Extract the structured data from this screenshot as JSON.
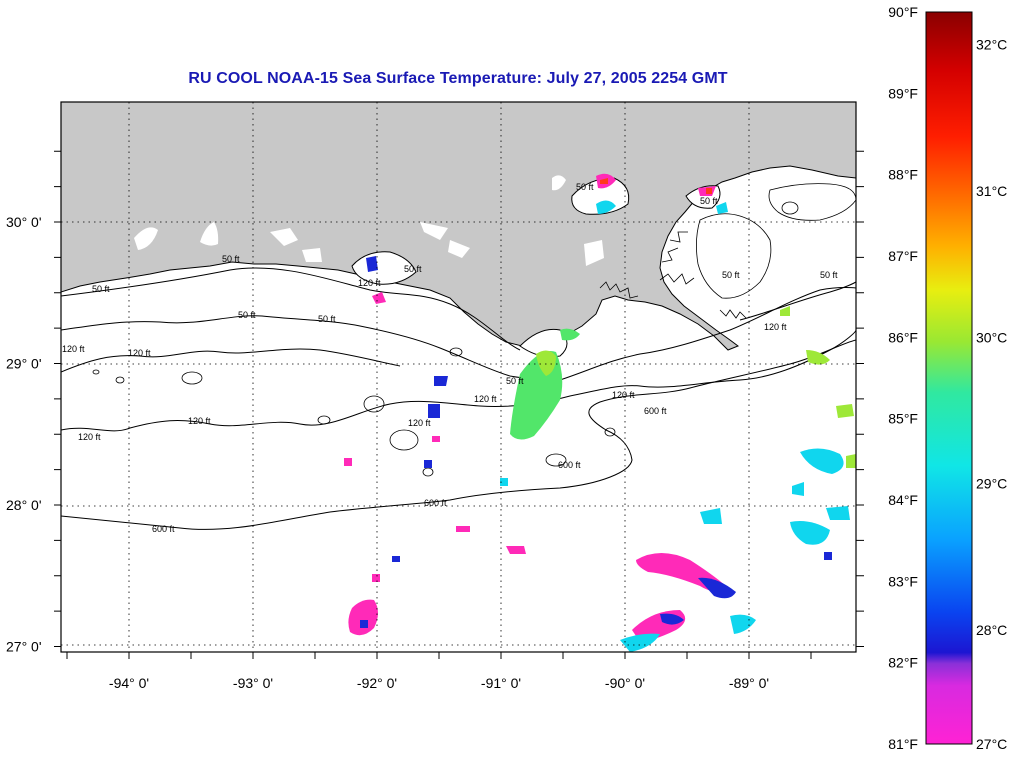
{
  "title": "RU COOL  NOAA-15  Sea Surface Temperature:  July 27, 2005 2254 GMT",
  "map": {
    "lon_labels": [
      {
        "value": -94,
        "text": "-94° 0'"
      },
      {
        "value": -93,
        "text": "-93° 0'"
      },
      {
        "value": -92,
        "text": "-92° 0'"
      },
      {
        "value": -91,
        "text": "-91° 0'"
      },
      {
        "value": -90,
        "text": "-90° 0'"
      },
      {
        "value": -89,
        "text": "-89° 0'"
      }
    ],
    "lat_labels": [
      {
        "value": 30,
        "text": "30° 0'"
      },
      {
        "value": 29,
        "text": "29° 0'"
      },
      {
        "value": 28,
        "text": "28° 0'"
      },
      {
        "value": 27,
        "text": "27° 0'"
      }
    ],
    "contour_labels": [
      "50 ft",
      "120 ft",
      "600 ft"
    ],
    "colors": {
      "land": "#c8c8c8",
      "contour": "#000000",
      "ocean": "#ffffff"
    }
  },
  "colorbar": {
    "fahrenheit": [
      "90°F",
      "89°F",
      "88°F",
      "87°F",
      "86°F",
      "85°F",
      "84°F",
      "83°F",
      "82°F",
      "81°F"
    ],
    "celsius": [
      "32°C",
      "31°C",
      "30°C",
      "29°C",
      "28°C",
      "27°C"
    ],
    "range_f": [
      81,
      90
    ],
    "range_c": [
      27.22,
      32.22
    ],
    "gradient_stops": [
      "#ff22d4",
      "#c233e8",
      "#6a2ccf",
      "#1c16d2",
      "#0a44f0",
      "#0aa2ff",
      "#10e6e6",
      "#30e8a0",
      "#9ae832",
      "#e8ee10",
      "#ffb000",
      "#ff6a00",
      "#ff1e00",
      "#d40000",
      "#8a0000"
    ]
  }
}
